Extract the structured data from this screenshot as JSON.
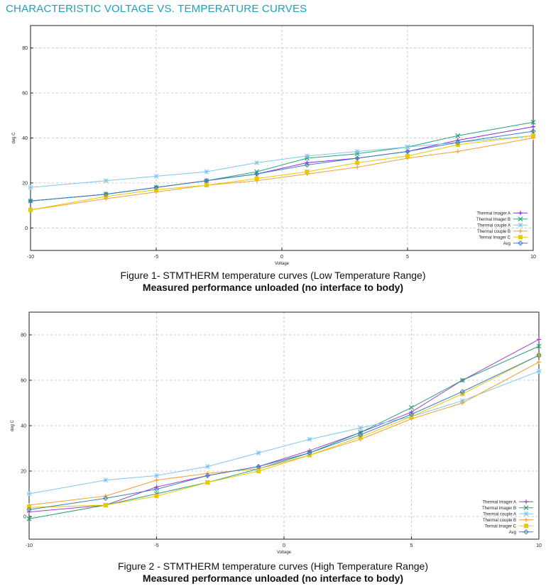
{
  "page_title": "CHARACTERISTIC VOLTAGE VS. TEMPERATURE CURVES",
  "figures": [
    {
      "caption": "Figure 1- STMTHERM temperature curves (Low Temperature Range)",
      "subcaption": "Measured performance unloaded (no interface to body)"
    },
    {
      "caption": "Figure 2 - STMTHERM temperature curves (High Temperature Range)",
      "subcaption": "Measured performance unloaded (no interface to body)"
    }
  ],
  "chart_data": [
    {
      "type": "line",
      "xlabel": "Voltage",
      "ylabel": "deg C",
      "xlim": [
        -10,
        10
      ],
      "ylim": [
        -10,
        90
      ],
      "xticks": [
        -10,
        -5,
        0,
        5,
        10
      ],
      "yticks": [
        0,
        20,
        40,
        60,
        80
      ],
      "grid": true,
      "legend": "bottom-right",
      "x": [
        -10,
        -7,
        -5,
        -3,
        -1,
        1,
        3,
        5,
        7,
        10
      ],
      "series": [
        {
          "name": "Thermal Imager A",
          "color": "#8a2be2",
          "values": [
            12,
            15,
            18,
            21,
            24,
            29,
            31,
            34,
            39,
            45
          ]
        },
        {
          "name": "Thermal Imager B",
          "color": "#2aa07a",
          "values": [
            12,
            15,
            18,
            21,
            25,
            31,
            33,
            36,
            41,
            47
          ]
        },
        {
          "name": "Thermal couple A",
          "color": "#7fc6ee",
          "values": [
            18,
            21,
            23,
            25,
            29,
            32,
            34,
            36,
            38,
            41
          ]
        },
        {
          "name": "Thermal couple B",
          "color": "#f0a030",
          "values": [
            8,
            13,
            16,
            19,
            21,
            24,
            27,
            31,
            34,
            40
          ]
        },
        {
          "name": "Termal Imager C",
          "color": "#e8c800",
          "values": [
            8,
            14,
            17,
            19,
            22,
            25,
            29,
            32,
            37,
            41
          ]
        },
        {
          "name": "Avg",
          "color": "#3a7fbf",
          "values": [
            12,
            15,
            18,
            21,
            24,
            28,
            31,
            34,
            38,
            43
          ]
        }
      ]
    },
    {
      "type": "line",
      "xlabel": "Voltage",
      "ylabel": "deg C",
      "xlim": [
        -10,
        10
      ],
      "ylim": [
        -10,
        90
      ],
      "xticks": [
        -10,
        -5,
        0,
        5,
        10
      ],
      "yticks": [
        0,
        20,
        40,
        60,
        80
      ],
      "grid": true,
      "legend": "bottom-right",
      "x": [
        -10,
        -7,
        -5,
        -3,
        -1,
        1,
        3,
        5,
        7,
        10
      ],
      "series": [
        {
          "name": "Thermal Imager A",
          "color": "#a040d0",
          "values": [
            2,
            5,
            13,
            18,
            22,
            29,
            37,
            46,
            60,
            78
          ]
        },
        {
          "name": "Thermal Imager B",
          "color": "#2aa07a",
          "values": [
            -1,
            5,
            10,
            15,
            21,
            28,
            37,
            48,
            60,
            75
          ]
        },
        {
          "name": "Thermal couple A",
          "color": "#7fc6ee",
          "values": [
            10,
            16,
            18,
            22,
            28,
            34,
            39,
            44,
            51,
            64
          ]
        },
        {
          "name": "Thermal couple B",
          "color": "#f0a030",
          "values": [
            5,
            9,
            16,
            19,
            21,
            27,
            34,
            43,
            50,
            68
          ]
        },
        {
          "name": "Termal Imager C",
          "color": "#e8c800",
          "values": [
            4,
            5,
            9,
            15,
            20,
            27,
            35,
            44,
            54,
            71
          ]
        },
        {
          "name": "Avg",
          "color": "#3a7fbf",
          "values": [
            3,
            8,
            12,
            18,
            22,
            28,
            36,
            45,
            55,
            71
          ]
        }
      ]
    }
  ]
}
